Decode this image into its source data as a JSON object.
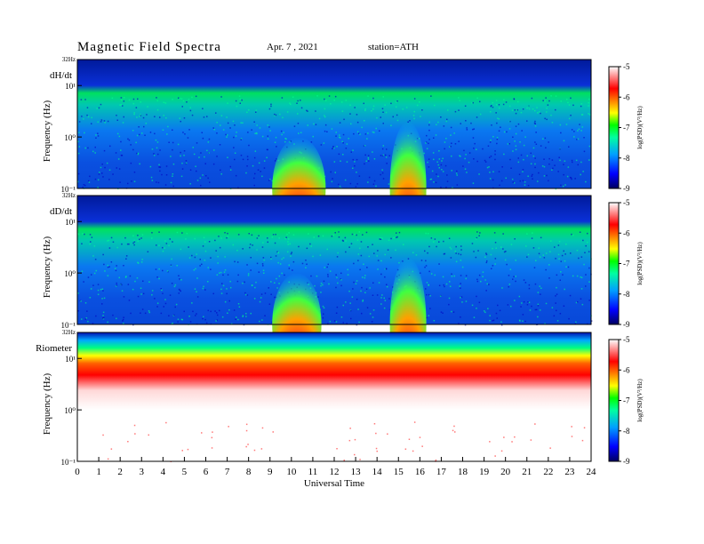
{
  "header": {
    "title": "Magnetic  Field  Spectra",
    "date": "Apr. 7  , 2021",
    "station": "station=ATH"
  },
  "chart_data": {
    "type": "heatmap",
    "xlabel": "Universal Time",
    "x_ticks": [
      "0",
      "1",
      "2",
      "3",
      "4",
      "5",
      "6",
      "7",
      "8",
      "9",
      "10",
      "11",
      "12",
      "13",
      "14",
      "15",
      "16",
      "17",
      "18",
      "19",
      "20",
      "21",
      "22",
      "23",
      "24"
    ],
    "xlim": [
      0,
      24
    ],
    "y_scale": "log",
    "ylim": [
      0.1,
      32
    ],
    "ylabel": "Frequency  (Hz)",
    "y_tick_labels": [
      "10⁻¹",
      "10⁰",
      "10¹",
      "32Hz"
    ],
    "colorbar": {
      "label": "log(PSD)(V²/Hz)",
      "ticks": [
        "-5",
        "-6",
        "-7",
        "-8",
        "-9"
      ],
      "range": [
        -9,
        -5
      ],
      "colors": [
        "#000060",
        "#0000ff",
        "#00a0ff",
        "#00ffa0",
        "#00ff00",
        "#ffff00",
        "#ff8000",
        "#ff0000",
        "#ffffff"
      ]
    },
    "panels": [
      {
        "name": "dH/dt",
        "events": [
          {
            "start": 9.1,
            "end": 11.6,
            "peak_freq": 1.0
          },
          {
            "start": 14.6,
            "end": 16.3,
            "peak_freq": 2.0
          }
        ]
      },
      {
        "name": "dD/dt",
        "events": [
          {
            "start": 9.1,
            "end": 11.4,
            "peak_freq": 1.0
          },
          {
            "start": 14.6,
            "end": 16.3,
            "peak_freq": 2.0
          }
        ]
      },
      {
        "name": "Riometer",
        "events": []
      }
    ]
  }
}
